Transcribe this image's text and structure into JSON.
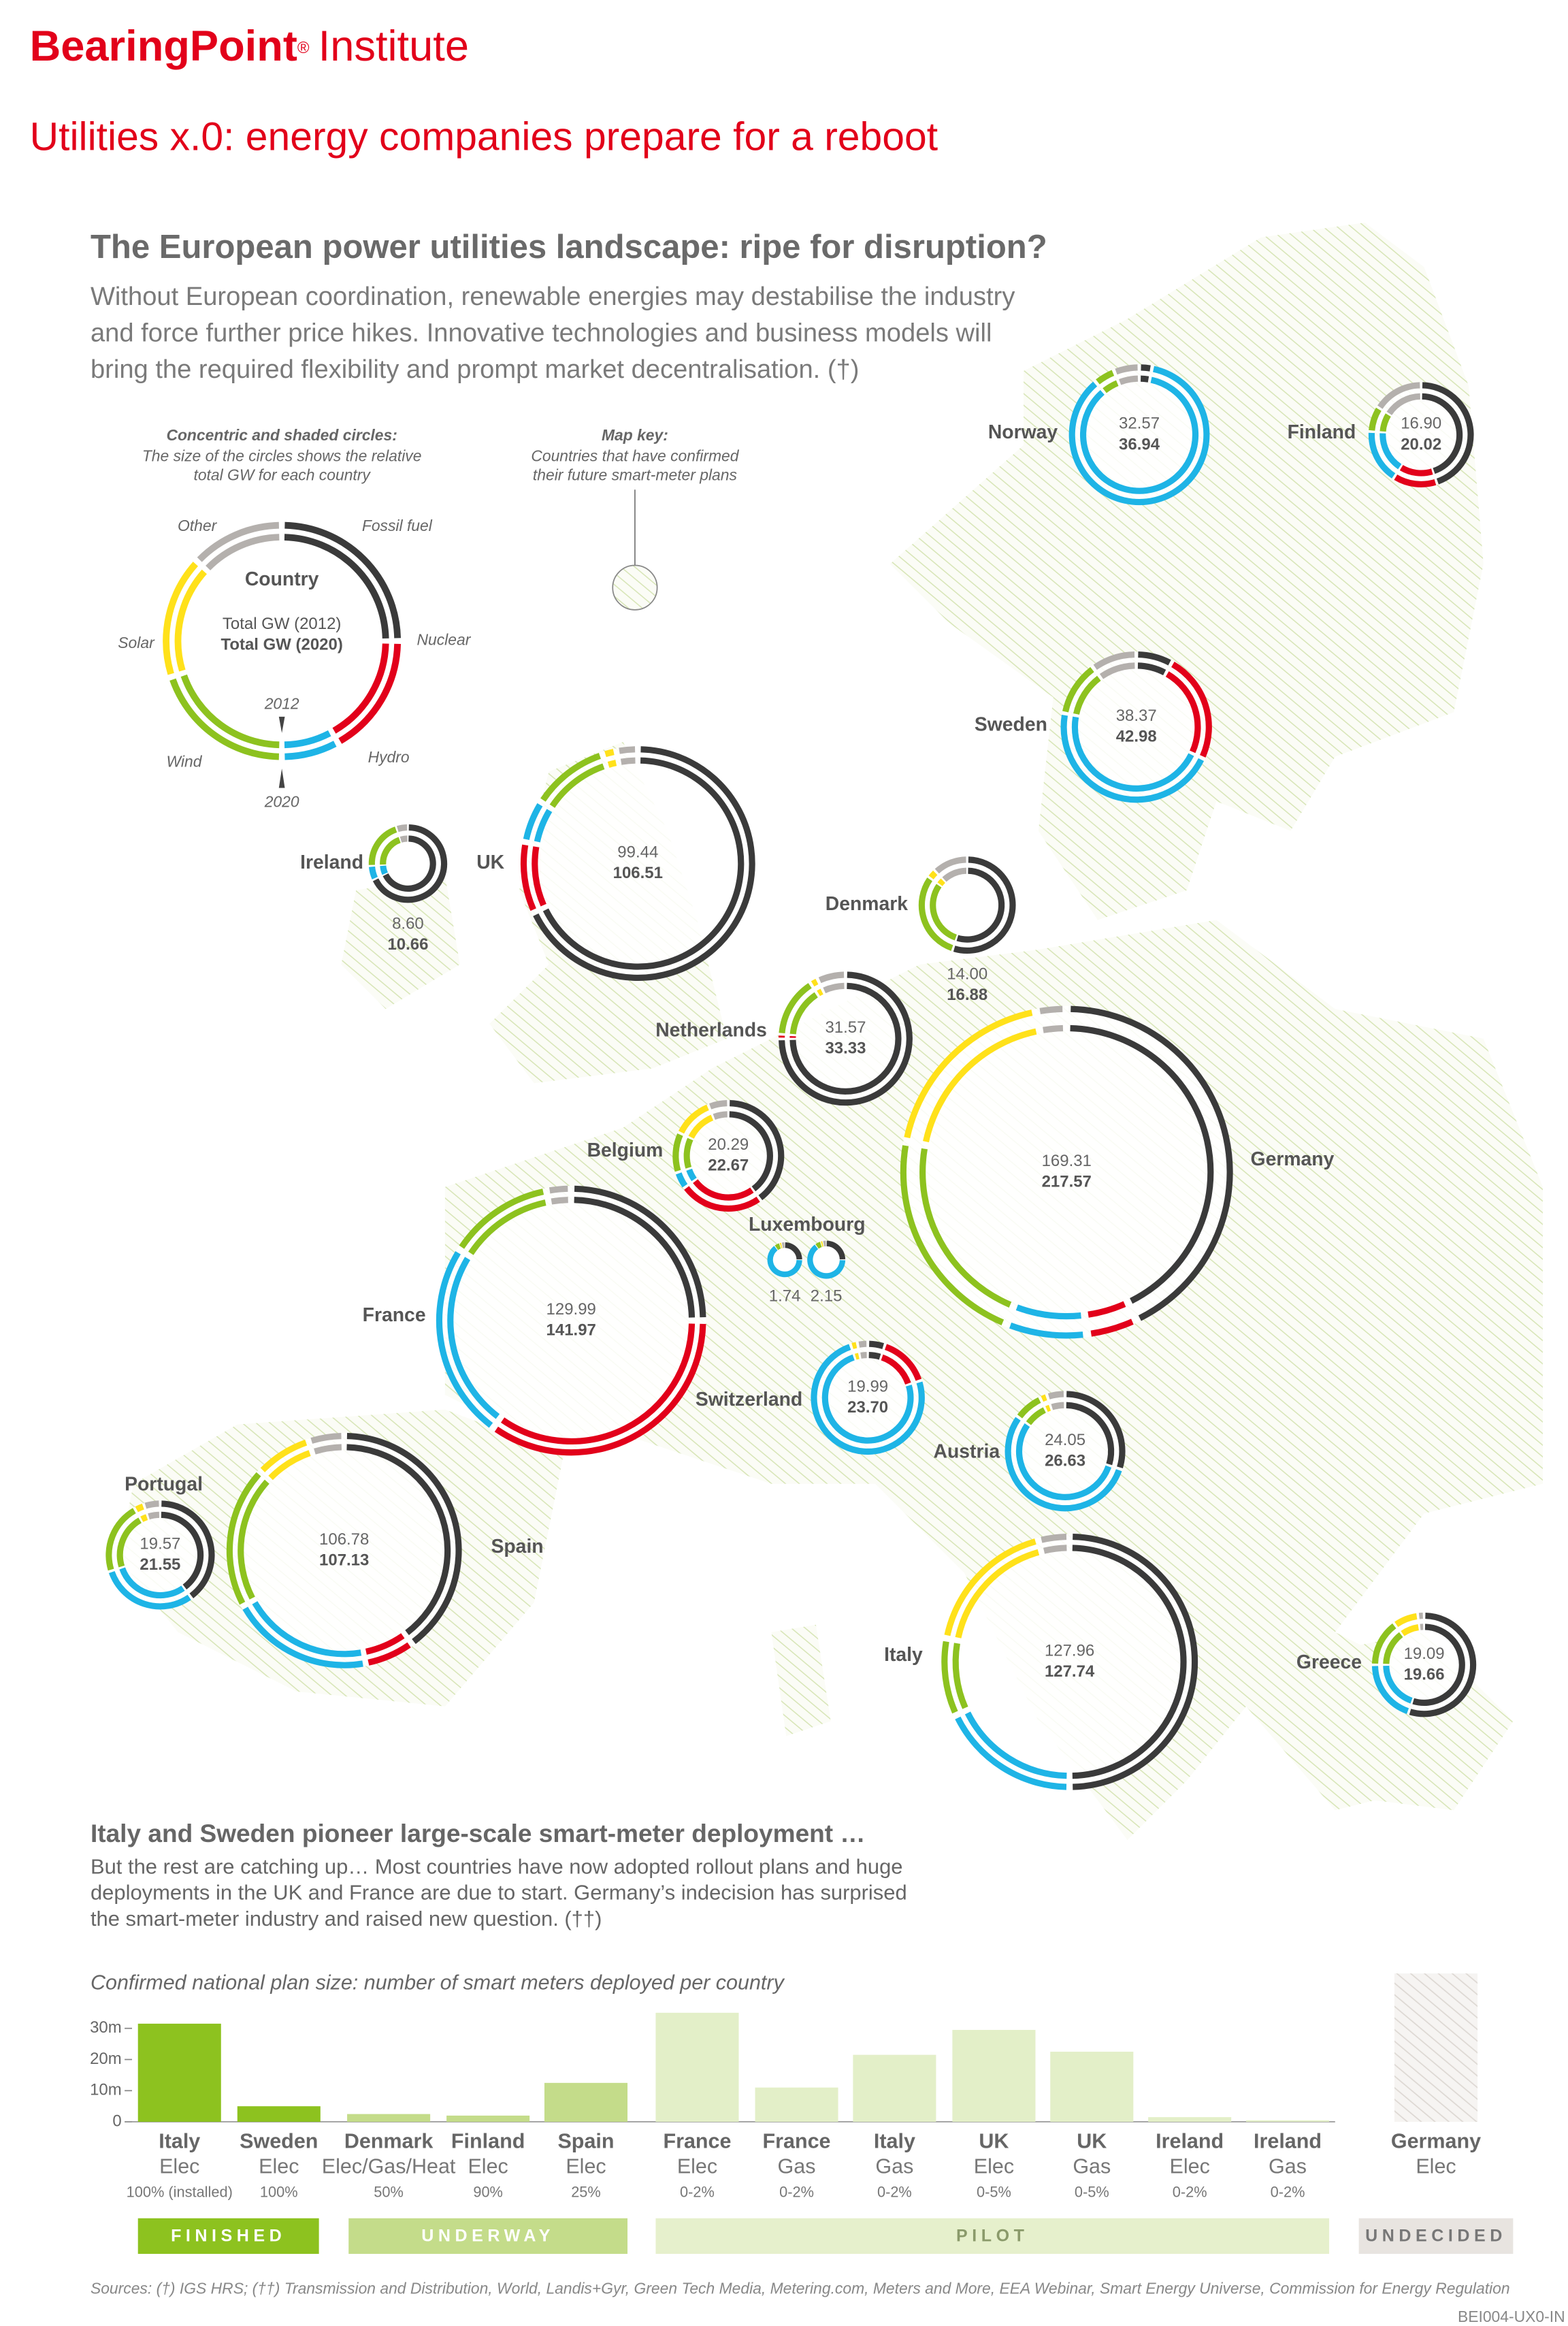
{
  "header": {
    "brand": "BearingPoint",
    "mark": "®",
    "suffix": "Institute",
    "title": "Utilities x.0: energy companies prepare for a reboot"
  },
  "intro": {
    "heading": "The European power utilities landscape: ripe for disruption?",
    "lines": [
      "Without European coordination, renewable energies may destabilise the industry",
      "and force further price hikes. Innovative technologies and business models will",
      "bring the required flexibility and prompt market decentralisation. (†)"
    ]
  },
  "key": {
    "title": "Concentric and shaded circles:",
    "lines": [
      "The size of the circles shows the relative",
      "total GW for each country"
    ],
    "center": [
      "Country",
      "Total GW (2012)",
      "Total GW (2020)"
    ],
    "year_2012": "2012",
    "year_2020": "2020",
    "sources": [
      {
        "name": "Fossil fuel",
        "color": "#3a3a3a"
      },
      {
        "name": "Nuclear",
        "color": "#e2001a"
      },
      {
        "name": "Hydro",
        "color": "#1eb4e6"
      },
      {
        "name": "Wind",
        "color": "#8dc21f"
      },
      {
        "name": "Solar",
        "color": "#ffe11a"
      },
      {
        "name": "Other",
        "color": "#b4b0ad"
      }
    ]
  },
  "map_key": {
    "title": "Map key:",
    "lines": [
      "Countries that have confirmed",
      "their future smart-meter plans"
    ]
  },
  "countries": [
    {
      "name": "Norway",
      "gw2012": "32.57",
      "gw2020": "36.94",
      "mix": [
        3,
        0,
        86,
        5,
        0,
        6
      ]
    },
    {
      "name": "Finland",
      "gw2012": "16.90",
      "gw2020": "20.02",
      "mix": [
        45,
        14,
        17,
        8,
        0,
        16
      ]
    },
    {
      "name": "Sweden",
      "gw2012": "38.37",
      "gw2020": "42.98",
      "mix": [
        8,
        24,
        46,
        12,
        0,
        10
      ]
    },
    {
      "name": "Ireland",
      "gw2012": "8.60",
      "gw2020": "10.66",
      "mix": [
        68,
        0,
        6,
        21,
        0,
        5
      ]
    },
    {
      "name": "UK",
      "gw2012": "99.44",
      "gw2020": "106.51",
      "mix": [
        68,
        10,
        6,
        11,
        2,
        3
      ]
    },
    {
      "name": "Denmark",
      "gw2012": "14.00",
      "gw2020": "16.88",
      "mix": [
        55,
        0,
        0,
        30,
        3,
        12
      ]
    },
    {
      "name": "Netherlands",
      "gw2012": "31.57",
      "gw2020": "33.33",
      "mix": [
        75,
        1,
        0,
        15,
        2,
        7
      ]
    },
    {
      "name": "Belgium",
      "gw2012": "20.29",
      "gw2020": "22.67",
      "mix": [
        40,
        25,
        5,
        12,
        12,
        6
      ]
    },
    {
      "name": "Luxembourg",
      "gw2012": "1.74",
      "gw2020": "2.15",
      "mix": [
        25,
        0,
        65,
        5,
        2,
        3
      ]
    },
    {
      "name": "Germany",
      "gw2012": "169.31",
      "gw2020": "217.57",
      "mix": [
        43,
        5,
        8,
        22,
        19,
        3
      ]
    },
    {
      "name": "France",
      "gw2012": "129.99",
      "gw2020": "141.97",
      "mix": [
        25,
        35,
        24,
        13,
        0,
        3
      ]
    },
    {
      "name": "Switzerland",
      "gw2012": "19.99",
      "gw2020": "23.70",
      "mix": [
        5,
        15,
        75,
        0,
        2,
        3
      ]
    },
    {
      "name": "Austria",
      "gw2012": "24.05",
      "gw2020": "26.63",
      "mix": [
        30,
        0,
        55,
        8,
        2,
        5
      ]
    },
    {
      "name": "Portugal",
      "gw2012": "19.57",
      "gw2020": "21.55",
      "mix": [
        40,
        0,
        30,
        22,
        3,
        5
      ]
    },
    {
      "name": "Spain",
      "gw2012": "106.78",
      "gw2020": "107.13",
      "mix": [
        40,
        7,
        20,
        20,
        8,
        5
      ]
    },
    {
      "name": "Italy",
      "gw2012": "127.96",
      "gw2020": "127.74",
      "mix": [
        50,
        0,
        18,
        10,
        18,
        4
      ]
    },
    {
      "name": "Greece",
      "gw2012": "19.09",
      "gw2020": "19.66",
      "mix": [
        55,
        0,
        20,
        15,
        8,
        2
      ]
    }
  ],
  "section": {
    "heading": "Italy and Sweden pioneer large-scale smart-meter deployment …",
    "lines": [
      "But the rest are catching up… Most countries have now adopted rollout plans and huge",
      "deployments in the UK and France are due to start. Germany’s indecision has surprised",
      "the smart-meter industry and raised new question. (††)"
    ]
  },
  "chart_data": {
    "type": "bar",
    "title": "Confirmed national plan size: number of smart meters deployed per country",
    "categories": [
      "Italy",
      "Sweden",
      "Denmark",
      "Finland",
      "Spain",
      "France",
      "France",
      "Italy",
      "UK",
      "UK",
      "Ireland",
      "Ireland",
      "Germany"
    ],
    "types": [
      "Elec",
      "Elec",
      "Elec/Gas/Heat",
      "Elec",
      "Elec",
      "Elec",
      "Gas",
      "Gas",
      "Elec",
      "Gas",
      "Elec",
      "Gas",
      "Elec"
    ],
    "shares": [
      "100% (installed)",
      "100%",
      "50%",
      "90%",
      "25%",
      "0-2%",
      "0-2%",
      "0-2%",
      "0-5%",
      "0-5%",
      "0-2%",
      "0-2%",
      null
    ],
    "values": [
      31.5,
      5,
      2.5,
      2,
      12.5,
      35,
      11,
      21.5,
      29.5,
      22.5,
      1.5,
      0.5,
      null
    ],
    "colors": [
      "#8dc21f",
      "#8dc21f",
      "#c4dc8a",
      "#c4dc8a",
      "#c4dc8a",
      "#e3efc8",
      "#e3efc8",
      "#e3efc8",
      "#e3efc8",
      "#e3efc8",
      "#e3efc8",
      "#e3efc8",
      "#e8e4e0"
    ],
    "ylim": [
      0,
      35
    ],
    "yticks": [
      0,
      {
        "value": 10,
        "label": "10m"
      },
      {
        "value": 20,
        "label": "20m"
      },
      {
        "value": 30,
        "label": "30m"
      }
    ],
    "phases": [
      {
        "name": "FINISHED",
        "color": "#8dc21f"
      },
      {
        "name": "UNDERWAY",
        "color": "#c4dc8a"
      },
      {
        "name": "PILOT",
        "color": "#e6f0cc"
      },
      {
        "name": "UNDECIDED",
        "color": "#e8e4e0"
      }
    ]
  },
  "sources": "Sources: (†) IGS HRS; (††) Transmission and Distribution, World, Landis+Gyr, Green Tech Media, Metering.com, Meters and More, EEA Webinar, Smart Energy Universe, Commission for Energy Regulation",
  "code": "BEI004-UX0-IN"
}
